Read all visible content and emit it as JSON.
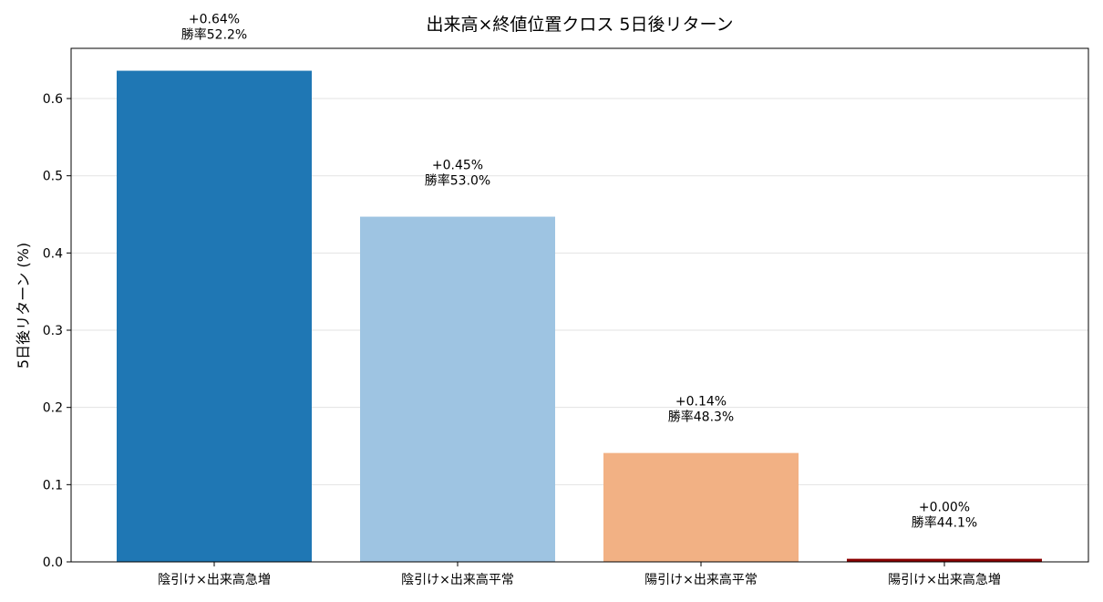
{
  "chart_data": {
    "type": "bar",
    "title": "出来高×終値位置クロス 5日後リターン",
    "xlabel": "",
    "ylabel": "5日後リターン (%)",
    "ylim": [
      0,
      0.665
    ],
    "yticks": [
      "0.0",
      "0.1",
      "0.2",
      "0.3",
      "0.4",
      "0.5",
      "0.6"
    ],
    "grid": "y",
    "categories": [
      "陰引け×出来高急増",
      "陰引け×出来高平常",
      "陽引け×出来高平常",
      "陽引け×出来高急増"
    ],
    "values": [
      0.636,
      0.447,
      0.141,
      0.004
    ],
    "colors": [
      "#1f77b4",
      "#9ec4e2",
      "#f2b184",
      "#8b0000"
    ],
    "return_labels": [
      "+0.64%",
      "+0.45%",
      "+0.14%",
      "+0.00%"
    ],
    "winrate_labels": [
      "勝率52.2%",
      "勝率53.0%",
      "勝率48.3%",
      "勝率44.1%"
    ]
  }
}
